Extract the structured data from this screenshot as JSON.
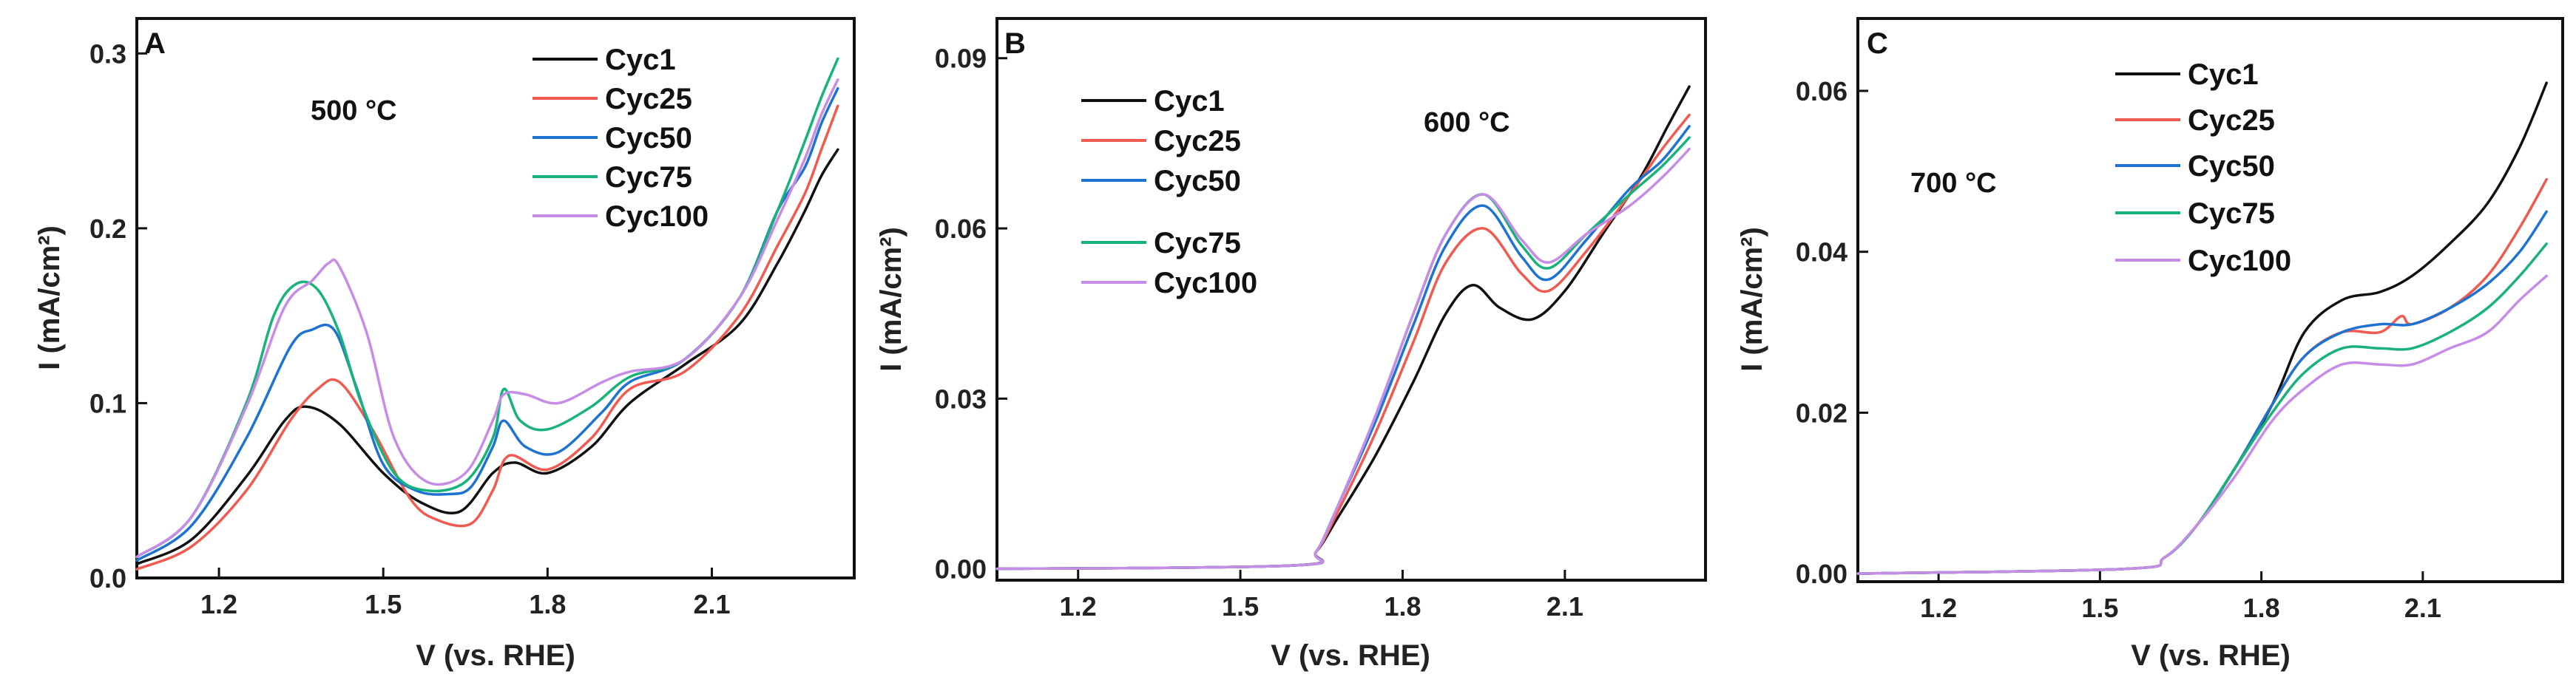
{
  "chart_data": [
    {
      "type": "line",
      "panel": "A",
      "annotation": "500 °C",
      "xlabel": "V (vs. RHE)",
      "ylabel": "I (mA/cm²)",
      "xlim": [
        1.05,
        2.36
      ],
      "ylim": [
        0.0,
        0.32
      ],
      "xticks": [
        "1.2",
        "1.5",
        "1.8",
        "2.1"
      ],
      "yticks": [
        "0.0",
        "0.1",
        "0.2",
        "0.3"
      ],
      "xtick_values": [
        1.2,
        1.5,
        1.8,
        2.1
      ],
      "ytick_values": [
        0.0,
        0.1,
        0.2,
        0.3
      ],
      "legend": [
        "Cyc1",
        "Cyc25",
        "Cyc50",
        "Cyc75",
        "Cyc100"
      ],
      "series": [
        {
          "name": "Cyc1",
          "color": "#111111",
          "x": [
            1.05,
            1.15,
            1.25,
            1.32,
            1.36,
            1.42,
            1.5,
            1.57,
            1.64,
            1.7,
            1.74,
            1.8,
            1.88,
            1.95,
            2.05,
            2.15,
            2.22,
            2.27,
            2.3,
            2.33
          ],
          "y": [
            0.008,
            0.022,
            0.058,
            0.09,
            0.098,
            0.088,
            0.06,
            0.043,
            0.038,
            0.06,
            0.066,
            0.06,
            0.075,
            0.1,
            0.122,
            0.145,
            0.18,
            0.21,
            0.23,
            0.245
          ]
        },
        {
          "name": "Cyc25",
          "color": "#f05a50",
          "x": [
            1.05,
            1.15,
            1.25,
            1.33,
            1.38,
            1.42,
            1.48,
            1.55,
            1.6,
            1.66,
            1.7,
            1.73,
            1.8,
            1.88,
            1.95,
            2.05,
            2.15,
            2.22,
            2.27,
            2.3,
            2.33
          ],
          "y": [
            0.005,
            0.018,
            0.05,
            0.09,
            0.108,
            0.112,
            0.085,
            0.045,
            0.033,
            0.031,
            0.05,
            0.07,
            0.062,
            0.08,
            0.108,
            0.118,
            0.15,
            0.19,
            0.22,
            0.245,
            0.27
          ]
        },
        {
          "name": "Cyc50",
          "color": "#1e73d2",
          "x": [
            1.05,
            1.15,
            1.25,
            1.33,
            1.37,
            1.41,
            1.45,
            1.5,
            1.56,
            1.62,
            1.66,
            1.7,
            1.72,
            1.76,
            1.82,
            1.9,
            1.95,
            2.05,
            2.15,
            2.22,
            2.27,
            2.3,
            2.33
          ],
          "y": [
            0.01,
            0.03,
            0.08,
            0.132,
            0.142,
            0.142,
            0.11,
            0.065,
            0.05,
            0.048,
            0.052,
            0.075,
            0.09,
            0.075,
            0.072,
            0.095,
            0.112,
            0.125,
            0.16,
            0.21,
            0.235,
            0.26,
            0.28
          ]
        },
        {
          "name": "Cyc75",
          "color": "#18b27a",
          "x": [
            1.05,
            1.15,
            1.25,
            1.3,
            1.34,
            1.38,
            1.42,
            1.46,
            1.52,
            1.58,
            1.65,
            1.7,
            1.72,
            1.75,
            1.8,
            1.88,
            1.95,
            2.05,
            2.15,
            2.22,
            2.27,
            2.3,
            2.33
          ],
          "y": [
            0.012,
            0.035,
            0.1,
            0.15,
            0.168,
            0.165,
            0.14,
            0.1,
            0.06,
            0.05,
            0.055,
            0.08,
            0.108,
            0.09,
            0.085,
            0.098,
            0.115,
            0.125,
            0.16,
            0.21,
            0.25,
            0.275,
            0.297
          ]
        },
        {
          "name": "Cyc100",
          "color": "#c68ce6",
          "x": [
            1.05,
            1.15,
            1.25,
            1.32,
            1.37,
            1.4,
            1.42,
            1.47,
            1.52,
            1.58,
            1.65,
            1.7,
            1.72,
            1.76,
            1.82,
            1.9,
            1.95,
            2.05,
            2.15,
            2.22,
            2.27,
            2.3,
            2.33
          ],
          "y": [
            0.012,
            0.035,
            0.098,
            0.155,
            0.17,
            0.18,
            0.178,
            0.14,
            0.08,
            0.055,
            0.06,
            0.09,
            0.105,
            0.105,
            0.1,
            0.112,
            0.118,
            0.125,
            0.16,
            0.205,
            0.24,
            0.265,
            0.285
          ]
        }
      ]
    },
    {
      "type": "line",
      "panel": "B",
      "annotation": "600 °C",
      "xlabel": "V (vs. RHE)",
      "ylabel": "I (mA/cm²)",
      "xlim": [
        1.05,
        2.36
      ],
      "ylim": [
        -0.002,
        0.097
      ],
      "xticks": [
        "1.2",
        "1.5",
        "1.8",
        "2.1"
      ],
      "yticks": [
        "0.00",
        "0.03",
        "0.06",
        "0.09"
      ],
      "xtick_values": [
        1.2,
        1.5,
        1.8,
        2.1
      ],
      "ytick_values": [
        0.0,
        0.03,
        0.06,
        0.09
      ],
      "legend": [
        "Cyc1",
        "Cyc25",
        "Cyc50",
        "Cyc75",
        "Cyc100"
      ],
      "series": [
        {
          "name": "Cyc1",
          "color": "#111111",
          "x": [
            1.05,
            1.6,
            1.64,
            1.68,
            1.75,
            1.82,
            1.88,
            1.93,
            1.98,
            2.04,
            2.1,
            2.17,
            2.24,
            2.29,
            2.33
          ],
          "y": [
            0.0,
            0.0006,
            0.003,
            0.009,
            0.02,
            0.033,
            0.045,
            0.05,
            0.046,
            0.044,
            0.049,
            0.059,
            0.069,
            0.078,
            0.085
          ]
        },
        {
          "name": "Cyc25",
          "color": "#f05a50",
          "x": [
            1.05,
            1.6,
            1.64,
            1.68,
            1.75,
            1.82,
            1.88,
            1.95,
            2.02,
            2.07,
            2.14,
            2.22,
            2.28,
            2.33
          ],
          "y": [
            0.0,
            0.0006,
            0.003,
            0.01,
            0.024,
            0.04,
            0.054,
            0.06,
            0.052,
            0.049,
            0.056,
            0.066,
            0.074,
            0.08
          ]
        },
        {
          "name": "Cyc50",
          "color": "#1e73d2",
          "x": [
            1.05,
            1.6,
            1.64,
            1.68,
            1.75,
            1.82,
            1.88,
            1.95,
            2.02,
            2.07,
            2.14,
            2.22,
            2.28,
            2.33
          ],
          "y": [
            0.0,
            0.0006,
            0.003,
            0.011,
            0.026,
            0.043,
            0.057,
            0.064,
            0.055,
            0.051,
            0.058,
            0.067,
            0.072,
            0.078
          ]
        },
        {
          "name": "Cyc75",
          "color": "#18b27a",
          "x": [
            1.05,
            1.6,
            1.64,
            1.68,
            1.75,
            1.82,
            1.88,
            1.95,
            2.02,
            2.07,
            2.14,
            2.22,
            2.28,
            2.33
          ],
          "y": [
            0.0,
            0.0006,
            0.003,
            0.011,
            0.027,
            0.045,
            0.059,
            0.066,
            0.057,
            0.053,
            0.059,
            0.066,
            0.071,
            0.076
          ]
        },
        {
          "name": "Cyc100",
          "color": "#c68ce6",
          "x": [
            1.05,
            1.6,
            1.64,
            1.68,
            1.75,
            1.82,
            1.88,
            1.95,
            2.02,
            2.07,
            2.14,
            2.22,
            2.28,
            2.33
          ],
          "y": [
            0.0,
            0.0006,
            0.003,
            0.011,
            0.027,
            0.045,
            0.059,
            0.066,
            0.058,
            0.054,
            0.059,
            0.064,
            0.069,
            0.074
          ]
        }
      ]
    },
    {
      "type": "line",
      "panel": "C",
      "annotation": "700 °C",
      "xlabel": "V (vs. RHE)",
      "ylabel": "I (mA/cm²)",
      "xlim": [
        1.05,
        2.36
      ],
      "ylim": [
        -0.001,
        0.069
      ],
      "xticks": [
        "1.2",
        "1.5",
        "1.8",
        "2.1"
      ],
      "yticks": [
        "0.00",
        "0.02",
        "0.04",
        "0.06"
      ],
      "xtick_values": [
        1.2,
        1.5,
        1.8,
        2.1
      ],
      "ytick_values": [
        0.0,
        0.02,
        0.04,
        0.06
      ],
      "legend": [
        "Cyc1",
        "Cyc25",
        "Cyc50",
        "Cyc75",
        "Cyc100"
      ],
      "series": [
        {
          "name": "Cyc1",
          "color": "#111111",
          "x": [
            1.05,
            1.55,
            1.62,
            1.68,
            1.75,
            1.82,
            1.88,
            1.95,
            2.02,
            2.08,
            2.15,
            2.22,
            2.28,
            2.33
          ],
          "y": [
            0.0,
            0.0006,
            0.002,
            0.006,
            0.013,
            0.021,
            0.03,
            0.034,
            0.035,
            0.037,
            0.041,
            0.046,
            0.053,
            0.061
          ]
        },
        {
          "name": "Cyc25",
          "color": "#f05a50",
          "x": [
            1.05,
            1.55,
            1.62,
            1.68,
            1.75,
            1.82,
            1.88,
            1.95,
            2.02,
            2.06,
            2.08,
            2.15,
            2.22,
            2.28,
            2.33
          ],
          "y": [
            0.0,
            0.0006,
            0.002,
            0.006,
            0.013,
            0.021,
            0.027,
            0.03,
            0.03,
            0.032,
            0.031,
            0.033,
            0.037,
            0.043,
            0.049
          ]
        },
        {
          "name": "Cyc50",
          "color": "#1e73d2",
          "x": [
            1.05,
            1.55,
            1.62,
            1.68,
            1.75,
            1.82,
            1.88,
            1.95,
            2.02,
            2.08,
            2.15,
            2.22,
            2.28,
            2.33
          ],
          "y": [
            0.0,
            0.0006,
            0.002,
            0.006,
            0.013,
            0.021,
            0.027,
            0.03,
            0.031,
            0.031,
            0.033,
            0.036,
            0.04,
            0.045
          ]
        },
        {
          "name": "Cyc75",
          "color": "#18b27a",
          "x": [
            1.05,
            1.55,
            1.62,
            1.68,
            1.75,
            1.82,
            1.88,
            1.95,
            2.02,
            2.08,
            2.15,
            2.22,
            2.28,
            2.33
          ],
          "y": [
            0.0,
            0.0006,
            0.002,
            0.006,
            0.013,
            0.02,
            0.025,
            0.028,
            0.028,
            0.028,
            0.03,
            0.033,
            0.037,
            0.041
          ]
        },
        {
          "name": "Cyc100",
          "color": "#c68ce6",
          "x": [
            1.05,
            1.55,
            1.62,
            1.68,
            1.75,
            1.82,
            1.88,
            1.95,
            2.02,
            2.08,
            2.15,
            2.22,
            2.28,
            2.33
          ],
          "y": [
            0.0,
            0.0006,
            0.002,
            0.006,
            0.012,
            0.019,
            0.023,
            0.026,
            0.026,
            0.026,
            0.028,
            0.03,
            0.034,
            0.037
          ]
        }
      ]
    }
  ]
}
